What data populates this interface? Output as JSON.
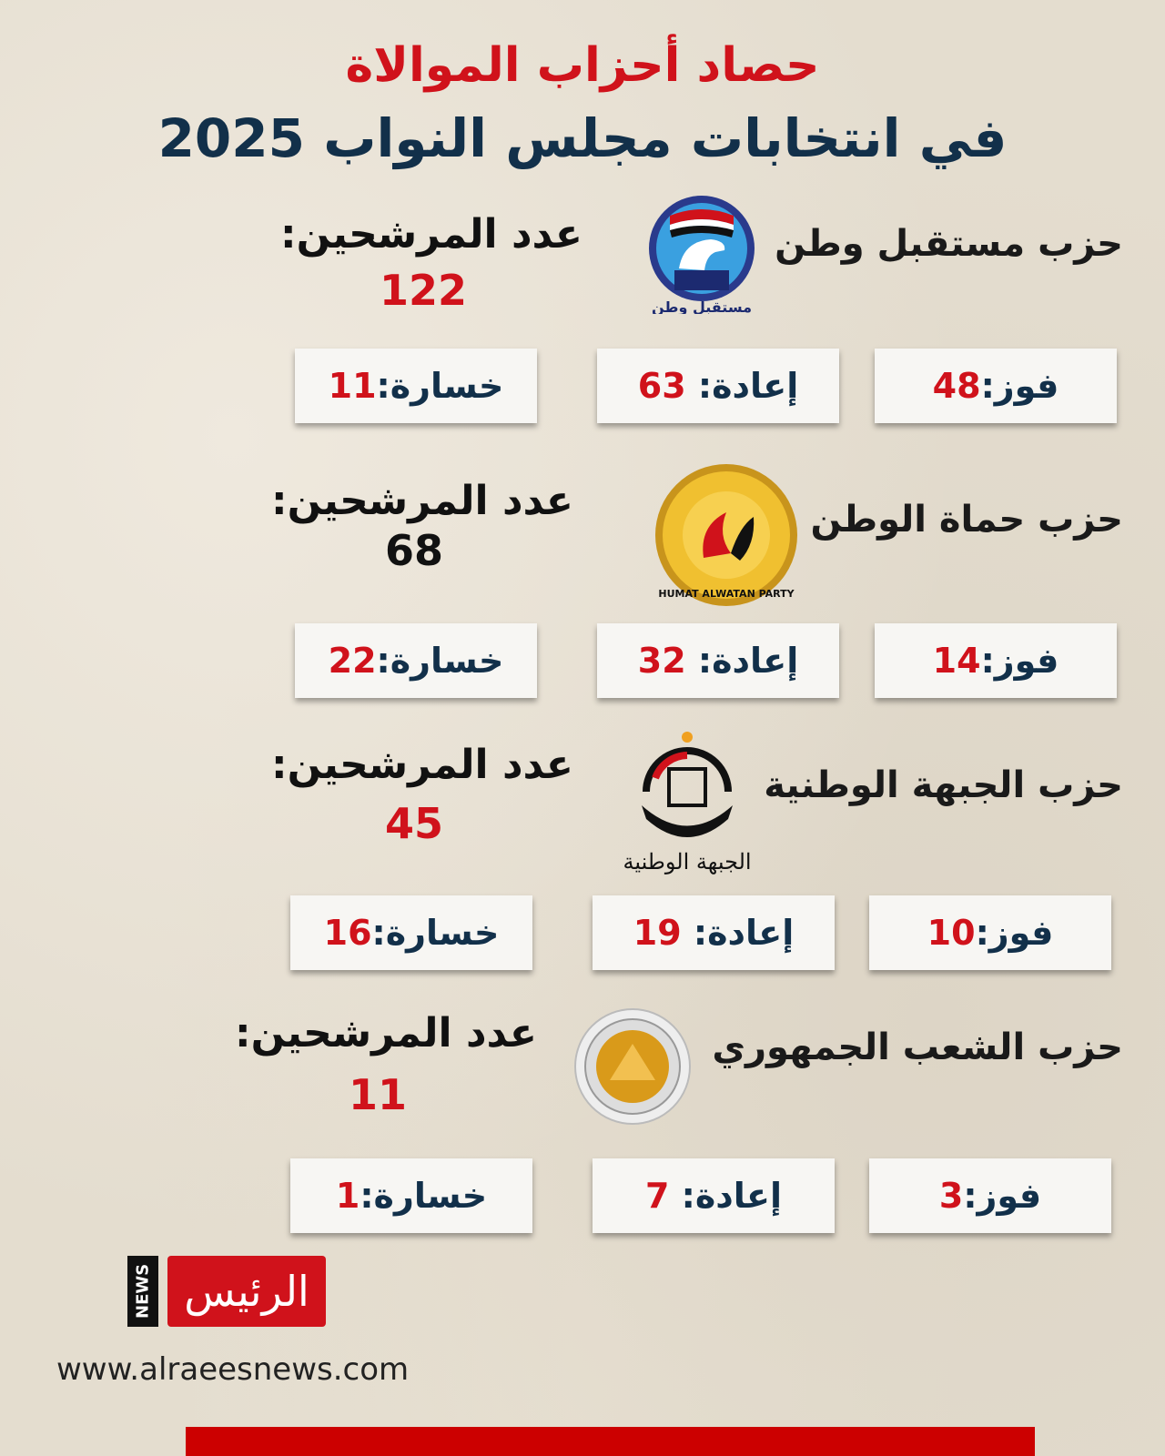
{
  "title": {
    "line1": "حصاد أحزاب الموالاة",
    "line2": "في انتخابات مجلس النواب 2025"
  },
  "labels": {
    "candidates": "عدد المرشحين:",
    "win": "فوز:",
    "rerun": "إعادة: ",
    "loss": "خسارة:"
  },
  "colors": {
    "accent_red": "#d0121b",
    "navy": "#12304a",
    "background": "#e4ddcf"
  },
  "parties": [
    {
      "name": "حزب مستقبل وطن",
      "logo_text": "مستقبل وطن",
      "candidates": "122",
      "candidates_color": "#d0121b",
      "win": "48",
      "rerun": "63",
      "loss": "11"
    },
    {
      "name": "حزب حماة الوطن",
      "logo_text": "HUMAT ALWATAN PARTY",
      "candidates": "68",
      "candidates_color": "#111111",
      "win": "14",
      "rerun": "32",
      "loss": "22"
    },
    {
      "name": "حزب الجبهة الوطنية",
      "logo_text": "الجبهة الوطنية",
      "candidates": "45",
      "candidates_color": "#d0121b",
      "win": "10",
      "rerun": "19",
      "loss": "16"
    },
    {
      "name": "حزب الشعب الجمهوري",
      "logo_text": "حزب الشعب الجمهوري",
      "candidates": "11",
      "candidates_color": "#d0121b",
      "win": "3",
      "rerun": "7",
      "loss": "1"
    }
  ],
  "footer": {
    "brand_news": "NEWS",
    "brand_name": "الرئيس",
    "url": "www.alraeesnews.com"
  }
}
